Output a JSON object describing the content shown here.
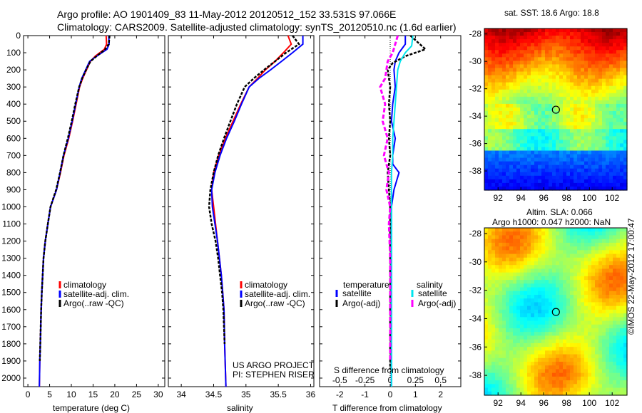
{
  "title_line1": "Argo profile: AO 1901409_83 11-May-2012 20120512_152 33.531S 97.066E",
  "title_line2": "Climatology: CARS2009. Satellite-adjusted climatology: synTS_20120510.nc (1.6d earlier)",
  "sst_title": "sat. SST: 18.6 Argo: 18.8",
  "sla_title_1": "Altim. SLA: 0.066",
  "sla_title_2": "Argo h1000: 0.047 h2000: NaN",
  "footer_credit": "©IMOS 22-May-2012 17:00:47",
  "project_line1": "US ARGO PROJECT",
  "project_line2": "PI: STEPHEN RISER",
  "colors": {
    "climatology": "#ff0000",
    "satellite": "#0000ff",
    "argo": "#000000",
    "sal_satellite": "#00e5ee",
    "sal_argo": "#ff00ff"
  },
  "chart_data": [
    {
      "type": "line",
      "panel": "temperature",
      "xlabel": "temperature (deg C)",
      "ylabel": "",
      "xlim": [
        -1,
        31.5
      ],
      "ylim": [
        2050,
        0
      ],
      "xticks": [
        0,
        5,
        10,
        15,
        20,
        25,
        30
      ],
      "yticks": [
        0,
        100,
        200,
        300,
        400,
        500,
        600,
        700,
        800,
        900,
        1000,
        1100,
        1200,
        1300,
        1400,
        1500,
        1600,
        1700,
        1800,
        1900,
        2000
      ],
      "legend": [
        "climatology",
        "satellite-adj. clim.",
        "Argo(..raw -QC)"
      ],
      "legend_placement": "lower-right",
      "series": [
        {
          "name": "climatology",
          "color": "#ff0000",
          "x": [
            18.0,
            18.1,
            17.6,
            15.5,
            14.4,
            13.5,
            12.6,
            11.9,
            11.1,
            10.3,
            9.4,
            8.3,
            7.5,
            6.6,
            5.2,
            4.6,
            4.0,
            3.6,
            3.4,
            3.2,
            3.05,
            2.95,
            2.85,
            2.75,
            2.65
          ],
          "y": [
            0,
            50,
            80,
            120,
            150,
            200,
            250,
            300,
            400,
            500,
            600,
            700,
            800,
            900,
            1000,
            1100,
            1200,
            1300,
            1400,
            1500,
            1600,
            1700,
            1800,
            1900,
            2050
          ]
        },
        {
          "name": "satellite-adj. clim.",
          "color": "#0000ff",
          "x": [
            18.6,
            18.7,
            18.2,
            15.8,
            14.2,
            13.3,
            12.4,
            11.8,
            11.0,
            10.2,
            9.3,
            8.2,
            7.4,
            6.6,
            5.2,
            4.6,
            4.0,
            3.6,
            3.4,
            3.2,
            3.05,
            2.95,
            2.85,
            2.75,
            2.65
          ],
          "y": [
            0,
            50,
            80,
            120,
            150,
            200,
            250,
            300,
            400,
            500,
            600,
            700,
            800,
            900,
            1000,
            1100,
            1200,
            1300,
            1400,
            1500,
            1600,
            1700,
            1800,
            1900,
            2050
          ]
        },
        {
          "name": "Argo(..raw -QC)",
          "color": "#000000",
          "x": [
            18.8,
            18.6,
            17.8,
            15.8,
            14.4,
            13.4,
            12.5,
            11.8,
            10.9,
            10.1,
            9.2,
            8.2,
            7.4,
            6.5,
            5.2,
            4.6,
            4.0,
            3.6,
            3.4,
            3.2,
            3.05,
            2.95,
            2.85,
            2.75
          ],
          "y": [
            0,
            50,
            80,
            120,
            150,
            200,
            250,
            300,
            400,
            500,
            600,
            700,
            800,
            900,
            1000,
            1100,
            1200,
            1300,
            1400,
            1500,
            1600,
            1700,
            1800,
            1900
          ]
        }
      ]
    },
    {
      "type": "line",
      "panel": "salinity",
      "xlabel": "salinity",
      "ylabel": "",
      "xlim": [
        33.8,
        36.05
      ],
      "ylim": [
        2050,
        0
      ],
      "xticks": [
        34,
        34.5,
        35,
        35.5,
        36
      ],
      "xtick_labels": [
        "34",
        "34.5",
        "35",
        "35.5",
        "36"
      ],
      "legend": [
        "climatology",
        "satellite-adj. clim.",
        "Argo(..raw -QC)"
      ],
      "legend_placement": "lower-right",
      "series": [
        {
          "name": "climatology",
          "color": "#ff0000",
          "x": [
            35.65,
            35.7,
            35.58,
            35.45,
            35.3,
            35.18,
            35.05,
            34.92,
            34.8,
            34.68,
            34.58,
            34.5,
            34.47,
            34.5,
            34.53,
            34.56,
            34.59,
            34.62,
            34.64,
            34.66,
            34.67,
            34.69
          ],
          "y": [
            0,
            50,
            100,
            150,
            200,
            250,
            300,
            400,
            500,
            600,
            700,
            800,
            900,
            1000,
            1100,
            1200,
            1300,
            1400,
            1500,
            1600,
            1800,
            2050
          ]
        },
        {
          "name": "satellite-adj. clim.",
          "color": "#0000ff",
          "x": [
            35.88,
            35.88,
            35.72,
            35.55,
            35.38,
            35.2,
            35.05,
            34.93,
            34.82,
            34.7,
            34.6,
            34.52,
            34.47,
            34.48,
            34.52,
            34.56,
            34.59,
            34.62,
            34.64,
            34.66,
            34.67,
            34.69
          ],
          "y": [
            0,
            50,
            100,
            150,
            200,
            250,
            300,
            400,
            500,
            600,
            700,
            800,
            900,
            1000,
            1100,
            1200,
            1300,
            1400,
            1500,
            1600,
            1800,
            2050
          ]
        },
        {
          "name": "Argo(..raw -QC)",
          "color": "#000000",
          "x": [
            35.72,
            35.82,
            35.62,
            35.45,
            35.28,
            35.12,
            34.98,
            34.86,
            34.76,
            34.66,
            34.57,
            34.5,
            34.45,
            34.43,
            34.47,
            34.53,
            34.57,
            34.6,
            34.63,
            34.65,
            34.67
          ],
          "y": [
            0,
            50,
            100,
            150,
            200,
            250,
            300,
            400,
            500,
            600,
            700,
            800,
            900,
            1000,
            1100,
            1200,
            1300,
            1400,
            1500,
            1600,
            1800
          ]
        }
      ]
    },
    {
      "type": "line",
      "panel": "differences",
      "xlabel": "T difference from climatology",
      "xlabel_top": "S difference from climatology",
      "xlim": [
        -2.8,
        2.8
      ],
      "ylim": [
        2050,
        0
      ],
      "xticks": [
        -2,
        -1,
        0,
        1,
        2
      ],
      "xticks_s": [
        "-0.5",
        "-0.25",
        "0",
        "0.25",
        "0.5"
      ],
      "xticks_s_values": [
        -2,
        -1,
        0,
        1,
        2
      ],
      "legend_headers": [
        "temperature",
        "salinity"
      ],
      "legend": [
        "satellite",
        "Argo(-adj)",
        "satellite",
        "Argo(-adj)"
      ],
      "legend_placement": "lower-center",
      "series": [
        {
          "name": "satellite",
          "group": "temperature",
          "color": "#0000ff",
          "x": [
            0.6,
            0.6,
            0.35,
            0.2,
            0.15,
            0.2,
            0.1,
            0.05,
            0.2,
            0.1,
            0.1,
            0.35,
            0.15,
            0.05,
            0.05,
            0.05,
            0.05,
            0.05,
            0.05,
            0.05,
            0.05,
            0.05,
            0.05
          ],
          "y": [
            0,
            50,
            100,
            150,
            200,
            300,
            400,
            500,
            600,
            700,
            750,
            800,
            900,
            1000,
            1100,
            1200,
            1300,
            1400,
            1500,
            1600,
            1700,
            1800,
            2050
          ]
        },
        {
          "name": "Argo(-adj)",
          "group": "temperature",
          "color": "#000000",
          "x": [
            0.8,
            1.4,
            0.6,
            0.1,
            -0.1,
            0.0,
            -0.05,
            0.0,
            -0.05,
            0.0,
            -0.1,
            -0.05,
            0.0,
            0.0,
            0.0,
            0.0,
            0.0,
            0.0,
            0.0
          ],
          "y": [
            0,
            80,
            120,
            160,
            200,
            300,
            400,
            500,
            600,
            700,
            800,
            900,
            1000,
            1100,
            1200,
            1400,
            1600,
            1800,
            1950
          ]
        },
        {
          "name": "satellite",
          "group": "salinity",
          "color": "#00e5ee",
          "x": [
            0.9,
            0.85,
            0.6,
            0.4,
            0.3,
            0.25,
            0.2,
            0.15,
            0.1,
            0.1,
            0.05,
            0.05,
            0.05,
            0.05,
            0.05,
            0.05,
            0.05
          ],
          "y": [
            0,
            60,
            100,
            150,
            200,
            300,
            400,
            500,
            600,
            700,
            800,
            1000,
            1200,
            1400,
            1600,
            1800,
            2050
          ]
        },
        {
          "name": "Argo(-adj)",
          "group": "salinity",
          "color": "#ff00ff",
          "x": [
            0.3,
            0.1,
            -0.1,
            -0.2,
            -0.4,
            -0.2,
            -0.3,
            -0.1,
            -0.25,
            -0.05,
            -0.15,
            0.0,
            -0.05,
            0.0,
            0.0,
            0.0
          ],
          "y": [
            0,
            100,
            150,
            250,
            300,
            400,
            500,
            600,
            700,
            800,
            900,
            1000,
            1100,
            1300,
            1600,
            1900
          ]
        }
      ]
    },
    {
      "type": "heatmap",
      "panel": "sst_map",
      "title": "sat. SST: 18.6 Argo: 18.8",
      "xlim": [
        90.8,
        103.3
      ],
      "ylim": [
        -39.4,
        -27.6
      ],
      "xticks": [
        92,
        94,
        96,
        98,
        100,
        102
      ],
      "yticks": [
        -28,
        -30,
        -32,
        -34,
        -36,
        -38
      ],
      "marker": {
        "lon": 97.07,
        "lat": -33.53
      }
    },
    {
      "type": "heatmap",
      "panel": "sla_map",
      "title": "Altim. SLA: 0.066",
      "xlim": [
        90.8,
        103.3
      ],
      "ylim": [
        -39.4,
        -27.6
      ],
      "xticks": [
        92,
        94,
        96,
        98,
        100,
        102
      ],
      "yticks": [
        -28,
        -30,
        -32,
        -34,
        -36,
        -38
      ],
      "marker": {
        "lon": 97.07,
        "lat": -33.53
      }
    }
  ]
}
